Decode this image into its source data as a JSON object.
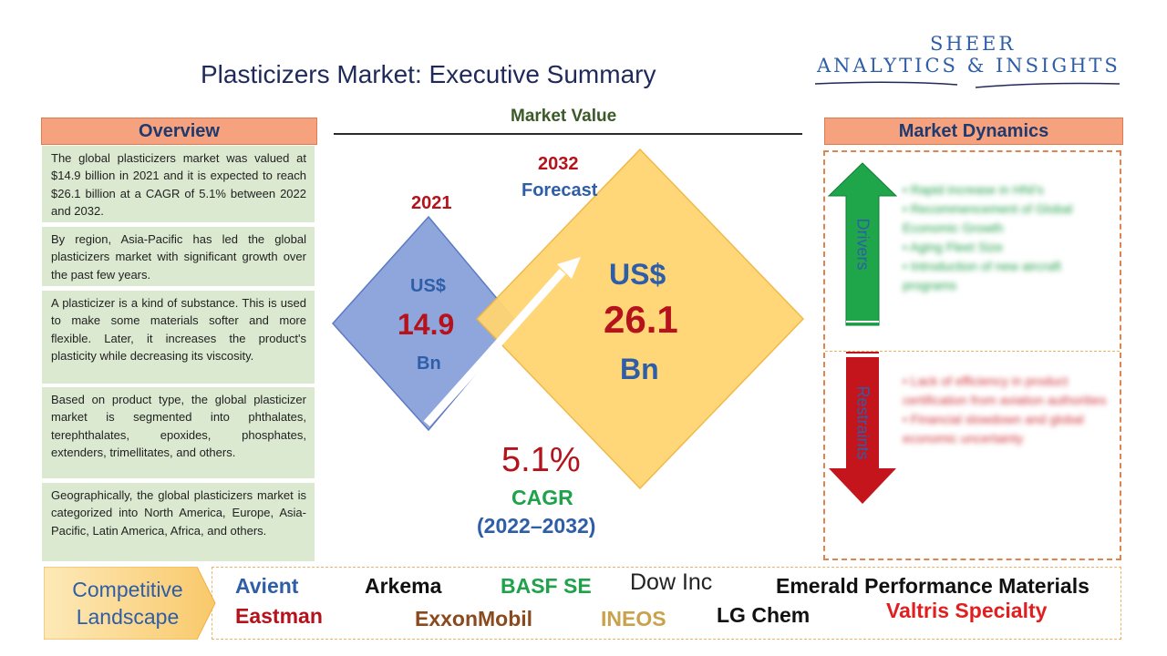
{
  "header": {
    "title": "Plasticizers Market: Executive Summary",
    "logo_line1": "SHEER",
    "logo_line2": "ANALYTICS & INSIGHTS"
  },
  "overview": {
    "heading": "Overview",
    "paragraphs": [
      "The global plasticizers market was valued at $14.9 billion in 2021 and it is expected to reach $26.1 billion at a CAGR of 5.1% between 2022 and 2032.",
      "By region, Asia-Pacific has led the global plasticizers market with significant growth over the past few years.",
      "A plasticizer is a kind of substance. This is used to make some materials softer and more flexible. Later, it increases the product's plasticity while decreasing its viscosity.",
      "Based on product type, the global plasticizer market is segmented into phthalates, terephthalates, epoxides, phosphates, extenders, trimellitates, and others.",
      "Geographically, the global plasticizers market is categorized into North America, Europe, Asia-Pacific, Latin America, Africa, and others."
    ]
  },
  "market_value": {
    "heading": "Market Value",
    "year_2021": "2021",
    "currency_2021": "US$",
    "value_2021": "14.9",
    "unit_2021": "Bn",
    "year_2032": "2032",
    "forecast_label": "Forecast",
    "currency_2032": "US$",
    "value_2032": "26.1",
    "unit_2032": "Bn",
    "cagr_value": "5.1%",
    "cagr_label": "CAGR",
    "cagr_period": "(2022–2032)"
  },
  "market_dynamics": {
    "heading": "Market Dynamics",
    "drivers_label": "Drivers",
    "drivers": [
      "Rapid increase in HNI's",
      "Recommencement of Global Economic Growth",
      "Aging Fleet Size",
      "Introduction of new aircraft programs"
    ],
    "restraints_label": "Restraints",
    "restraints": [
      "Lack of efficiency in product certification from aviation authorities",
      "Financial slowdown and global economic uncertainty"
    ]
  },
  "competitive_landscape": {
    "label_line1": "Competitive",
    "label_line2": "Landscape",
    "companies": [
      "Avient",
      "Arkema",
      "BASF SE",
      "Dow Inc",
      "Emerald Performance Materials",
      "Eastman",
      "ExxonMobil",
      "INEOS",
      "LG Chem",
      "Valtris Specialty"
    ]
  },
  "colors": {
    "header_fill": "#f6a27e",
    "overview_box": "#dbe9d0",
    "diamond_2021": "#8fa6dc",
    "diamond_2032": "#ffd572",
    "value_red": "#b5121b",
    "cagr_green": "#1ea24a",
    "drivers_green": "#1fa64a",
    "restraints_red": "#c4141c"
  }
}
